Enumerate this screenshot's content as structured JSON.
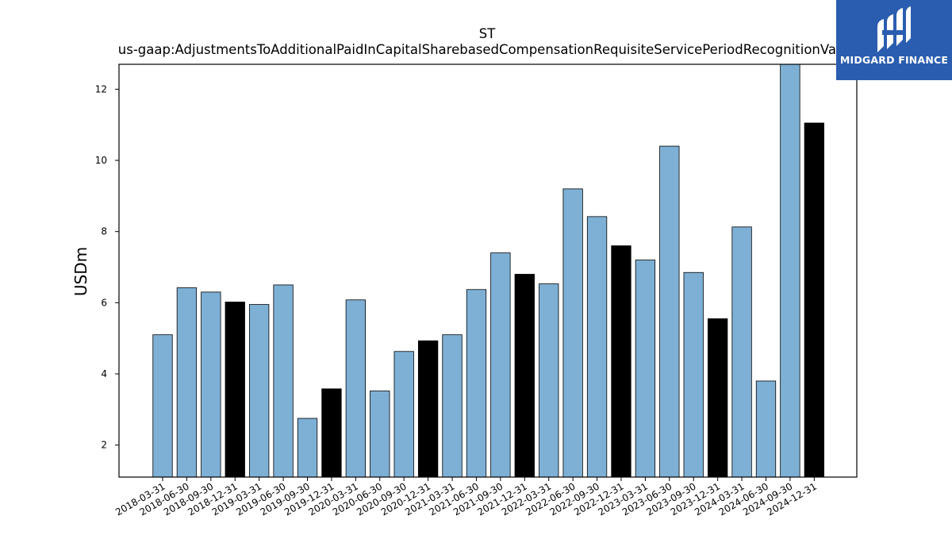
{
  "chart_data": {
    "type": "bar",
    "title": "ST",
    "subtitle": "us-gaap:AdjustmentsToAdditionalPaidInCapitalSharebasedCompensationRequisiteServicePeriodRecognitionValue",
    "xlabel": "",
    "ylabel": "USDm",
    "ylim": [
      1.1,
      12.7
    ],
    "yticks": [
      2,
      4,
      6,
      8,
      10,
      12
    ],
    "grid": false,
    "categories": [
      "2018-03-31",
      "2018-06-30",
      "2018-09-30",
      "2018-12-31",
      "2019-03-31",
      "2019-06-30",
      "2019-09-30",
      "2019-12-31",
      "2020-03-31",
      "2020-06-30",
      "2020-09-30",
      "2020-12-31",
      "2021-03-31",
      "2021-06-30",
      "2021-09-30",
      "2021-12-31",
      "2022-03-31",
      "2022-06-30",
      "2022-09-30",
      "2022-12-31",
      "2023-03-31",
      "2023-06-30",
      "2023-09-30",
      "2023-12-31",
      "2024-03-31",
      "2024-06-30",
      "2024-09-30",
      "2024-12-31"
    ],
    "values": [
      5.1,
      6.42,
      6.3,
      6.02,
      5.95,
      6.5,
      2.75,
      3.58,
      6.08,
      3.52,
      4.63,
      4.93,
      5.1,
      6.37,
      7.4,
      6.8,
      6.53,
      9.2,
      8.42,
      7.6,
      7.2,
      10.4,
      6.85,
      5.55,
      8.13,
      3.8,
      12.8,
      11.05
    ],
    "colors": {
      "quarter": "#7eb0d5",
      "year_end": "#000000",
      "edge": "#000000"
    }
  },
  "logo": {
    "text": "MIDGARD FINANCE",
    "bg": "#2a5db0"
  }
}
